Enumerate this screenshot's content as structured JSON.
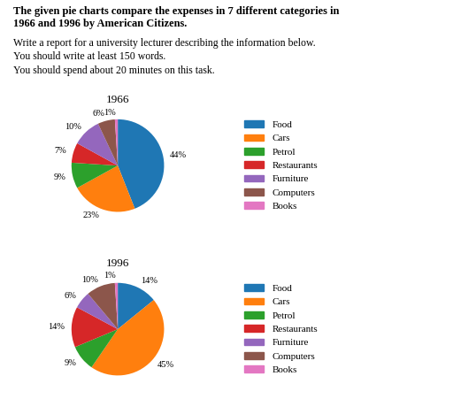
{
  "title": "The given pie charts compare the expenses in 7 different categories in\n1966 and 1996 by American Citizens.",
  "subtitle": "Write a report for a university lecturer describing the information below.\nYou should write at least 150 words.\nYou should spend about 20 minutes on this task.",
  "chart_data": [
    {
      "type": "pie",
      "title": "1966",
      "categories": [
        "Food",
        "Cars",
        "Petrol",
        "Restaurants",
        "Furniture",
        "Computers",
        "Books"
      ],
      "values": [
        44,
        23,
        9,
        7,
        10,
        6,
        1
      ],
      "value_labels": [
        "44%",
        "23%",
        "9%",
        "7%",
        "10%",
        "6%",
        "1%"
      ],
      "data_labels": true,
      "legend": "right"
    },
    {
      "type": "pie",
      "title": "1996",
      "categories": [
        "Food",
        "Cars",
        "Petrol",
        "Restaurants",
        "Furniture",
        "Computers",
        "Books"
      ],
      "values": [
        14,
        45,
        9,
        14,
        6,
        10,
        1
      ],
      "value_labels": [
        "14%",
        "45%",
        "9%",
        "14%",
        "6%",
        "10%",
        "1%"
      ],
      "data_labels": true,
      "legend": "right"
    }
  ]
}
